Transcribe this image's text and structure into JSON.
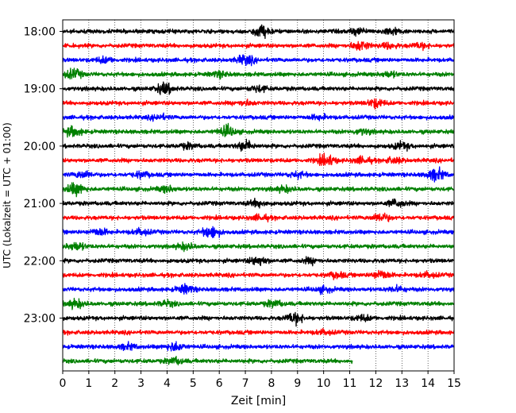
{
  "chart_data": {
    "type": "line",
    "title": "",
    "xlabel": "Zeit  [min]",
    "ylabel": "UTC (Lokalzeit = UTC + 01:00)",
    "xlim": [
      0,
      15
    ],
    "x_ticks": [
      0,
      1,
      2,
      3,
      4,
      5,
      6,
      7,
      8,
      9,
      10,
      11,
      12,
      13,
      14,
      15
    ],
    "y_tick_labels": [
      "18:00",
      "19:00",
      "20:00",
      "21:00",
      "22:00",
      "23:00"
    ],
    "row_minutes": 15,
    "start_time": "18:00",
    "grid": "vertical dotted at each minute",
    "trace_colors": [
      "#000000",
      "#ff0000",
      "#0000ff",
      "#008000"
    ],
    "traces": [
      {
        "start": "18:00",
        "color": "#000000",
        "end_min": 15,
        "events": [
          [
            7.6,
            2.2
          ],
          [
            11.3,
            1.2
          ],
          [
            12.6,
            1.3
          ]
        ]
      },
      {
        "start": "18:15",
        "color": "#ff0000",
        "end_min": 15,
        "events": [
          [
            11.4,
            1.8
          ],
          [
            12.5,
            1.0
          ],
          [
            13.7,
            0.9
          ]
        ]
      },
      {
        "start": "18:30",
        "color": "#0000ff",
        "end_min": 15,
        "events": [
          [
            7.0,
            1.8
          ],
          [
            1.6,
            1.0
          ]
        ]
      },
      {
        "start": "18:45",
        "color": "#008000",
        "end_min": 15,
        "events": [
          [
            0.4,
            1.7
          ],
          [
            6.0,
            1.0
          ],
          [
            12.5,
            1.0
          ]
        ]
      },
      {
        "start": "19:00",
        "color": "#000000",
        "end_min": 15,
        "events": [
          [
            3.9,
            2.0
          ],
          [
            7.5,
            1.1
          ]
        ]
      },
      {
        "start": "19:15",
        "color": "#ff0000",
        "end_min": 15,
        "events": [
          [
            12.0,
            1.6
          ],
          [
            7.0,
            0.9
          ]
        ]
      },
      {
        "start": "19:30",
        "color": "#0000ff",
        "end_min": 15,
        "events": [
          [
            3.7,
            0.9
          ],
          [
            9.8,
            0.8
          ]
        ]
      },
      {
        "start": "19:45",
        "color": "#008000",
        "end_min": 15,
        "events": [
          [
            0.4,
            1.8
          ],
          [
            6.3,
            2.0
          ],
          [
            11.5,
            0.9
          ]
        ]
      },
      {
        "start": "20:00",
        "color": "#000000",
        "end_min": 15,
        "events": [
          [
            7.0,
            1.8
          ],
          [
            13.0,
            1.2
          ],
          [
            4.8,
            0.9
          ]
        ]
      },
      {
        "start": "20:15",
        "color": "#ff0000",
        "end_min": 15,
        "events": [
          [
            10.1,
            2.1
          ],
          [
            11.5,
            1.2
          ],
          [
            12.7,
            1.0
          ]
        ]
      },
      {
        "start": "20:30",
        "color": "#0000ff",
        "end_min": 15,
        "events": [
          [
            14.3,
            2.3
          ],
          [
            0.8,
            1.3
          ],
          [
            3.0,
            1.0
          ],
          [
            9.0,
            1.0
          ]
        ]
      },
      {
        "start": "20:45",
        "color": "#008000",
        "end_min": 15,
        "events": [
          [
            0.5,
            2.2
          ],
          [
            4.0,
            1.1
          ],
          [
            8.5,
            1.0
          ]
        ]
      },
      {
        "start": "21:00",
        "color": "#000000",
        "end_min": 15,
        "events": [
          [
            7.5,
            1.3
          ],
          [
            12.8,
            1.4
          ]
        ]
      },
      {
        "start": "21:15",
        "color": "#ff0000",
        "end_min": 15,
        "events": [
          [
            12.2,
            1.6
          ],
          [
            7.6,
            1.0
          ]
        ]
      },
      {
        "start": "21:30",
        "color": "#0000ff",
        "end_min": 15,
        "events": [
          [
            5.7,
            2.4
          ],
          [
            1.4,
            1.3
          ],
          [
            3.0,
            1.1
          ]
        ]
      },
      {
        "start": "21:45",
        "color": "#008000",
        "end_min": 15,
        "events": [
          [
            0.5,
            1.6
          ],
          [
            4.7,
            1.2
          ]
        ]
      },
      {
        "start": "22:00",
        "color": "#000000",
        "end_min": 15,
        "events": [
          [
            7.5,
            1.7
          ],
          [
            9.5,
            0.9
          ]
        ]
      },
      {
        "start": "22:15",
        "color": "#ff0000",
        "end_min": 15,
        "events": [
          [
            12.2,
            1.7
          ],
          [
            10.5,
            1.0
          ],
          [
            14.0,
            0.9
          ]
        ]
      },
      {
        "start": "22:30",
        "color": "#0000ff",
        "end_min": 15,
        "events": [
          [
            4.7,
            1.6
          ],
          [
            10.0,
            1.0
          ],
          [
            12.8,
            1.0
          ]
        ]
      },
      {
        "start": "22:45",
        "color": "#008000",
        "end_min": 15,
        "events": [
          [
            0.5,
            1.5
          ],
          [
            8.1,
            1.2
          ],
          [
            4.0,
            0.9
          ]
        ]
      },
      {
        "start": "23:00",
        "color": "#000000",
        "end_min": 15,
        "events": [
          [
            8.9,
            2.0
          ],
          [
            11.5,
            1.0
          ]
        ]
      },
      {
        "start": "23:15",
        "color": "#ff0000",
        "end_min": 15,
        "events": [
          [
            10.0,
            0.8
          ]
        ]
      },
      {
        "start": "23:30",
        "color": "#0000ff",
        "end_min": 15,
        "events": [
          [
            4.3,
            1.7
          ],
          [
            2.5,
            1.0
          ]
        ]
      },
      {
        "start": "23:45",
        "color": "#008000",
        "end_min": 11.1,
        "events": [
          [
            4.3,
            1.2
          ]
        ]
      }
    ]
  }
}
